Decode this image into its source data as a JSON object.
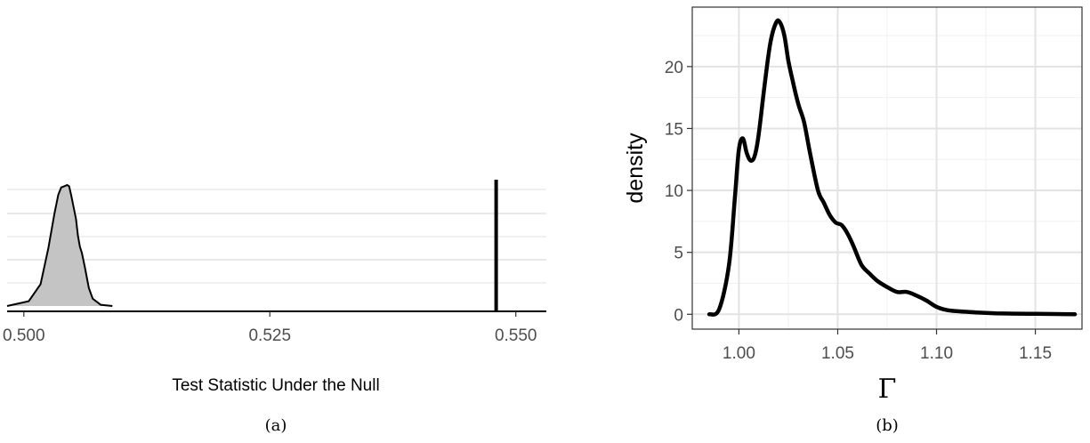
{
  "chart_data": [
    {
      "type": "area",
      "panel_caption": "(a)",
      "xlabel": "Test Statistic Under the Null",
      "ylabel": "",
      "xlim": [
        0.4983,
        0.5531
      ],
      "ylim": [
        0,
        1
      ],
      "x_ticks": [
        {
          "value": 0.5,
          "label": "0.500"
        },
        {
          "value": 0.525,
          "label": "0.525"
        },
        {
          "value": 0.55,
          "label": "0.550"
        }
      ],
      "grid": "horizontal",
      "null_distribution": {
        "x": [
          0.4983,
          0.5005,
          0.5017,
          0.5025,
          0.5031,
          0.5035,
          0.5038,
          0.5041,
          0.5044,
          0.5046,
          0.5048,
          0.505,
          0.5053,
          0.5055,
          0.5057,
          0.5059,
          0.5062,
          0.5066,
          0.507,
          0.5078,
          0.509
        ],
        "y": [
          0.0,
          0.04,
          0.18,
          0.48,
          0.76,
          0.92,
          0.98,
          0.99,
          1.0,
          0.99,
          0.92,
          0.84,
          0.72,
          0.58,
          0.49,
          0.44,
          0.32,
          0.15,
          0.06,
          0.01,
          0.0
        ]
      },
      "observed_value": 0.548
    },
    {
      "type": "line",
      "panel_caption": "(b)",
      "xlabel": "Γ",
      "ylabel": "density",
      "xlim": [
        0.9764,
        1.1736
      ],
      "ylim": [
        -1.2,
        24.8
      ],
      "x_ticks": [
        1.0,
        1.05,
        1.1,
        1.15
      ],
      "x_tick_labels": [
        "1.00",
        "1.05",
        "1.10",
        "1.15"
      ],
      "y_ticks": [
        0,
        5,
        10,
        15,
        20
      ],
      "y_tick_labels": [
        "0",
        "5",
        "10",
        "15",
        "20"
      ],
      "grid": "both",
      "series": [
        {
          "x": [
            0.985,
            0.99,
            0.995,
            0.998,
            1.0,
            1.002,
            1.004,
            1.006,
            1.008,
            1.01,
            1.013,
            1.016,
            1.019,
            1.021,
            1.023,
            1.025,
            1.027,
            1.03,
            1.033,
            1.036,
            1.04,
            1.043,
            1.046,
            1.049,
            1.052,
            1.055,
            1.058,
            1.062,
            1.066,
            1.07,
            1.075,
            1.08,
            1.085,
            1.09,
            1.095,
            1.1,
            1.105,
            1.11,
            1.12,
            1.13,
            1.14,
            1.15,
            1.16,
            1.17
          ],
          "y": [
            0.0,
            0.4,
            4.0,
            9.5,
            13.3,
            14.2,
            13.0,
            12.4,
            12.8,
            14.5,
            18.5,
            22.0,
            23.6,
            23.5,
            22.5,
            20.5,
            19.0,
            17.0,
            15.5,
            13.0,
            10.0,
            9.0,
            8.0,
            7.4,
            7.2,
            6.5,
            5.5,
            4.0,
            3.3,
            2.7,
            2.2,
            1.8,
            1.8,
            1.5,
            1.1,
            0.6,
            0.35,
            0.25,
            0.15,
            0.08,
            0.05,
            0.04,
            0.02,
            0.0
          ]
        }
      ]
    }
  ]
}
